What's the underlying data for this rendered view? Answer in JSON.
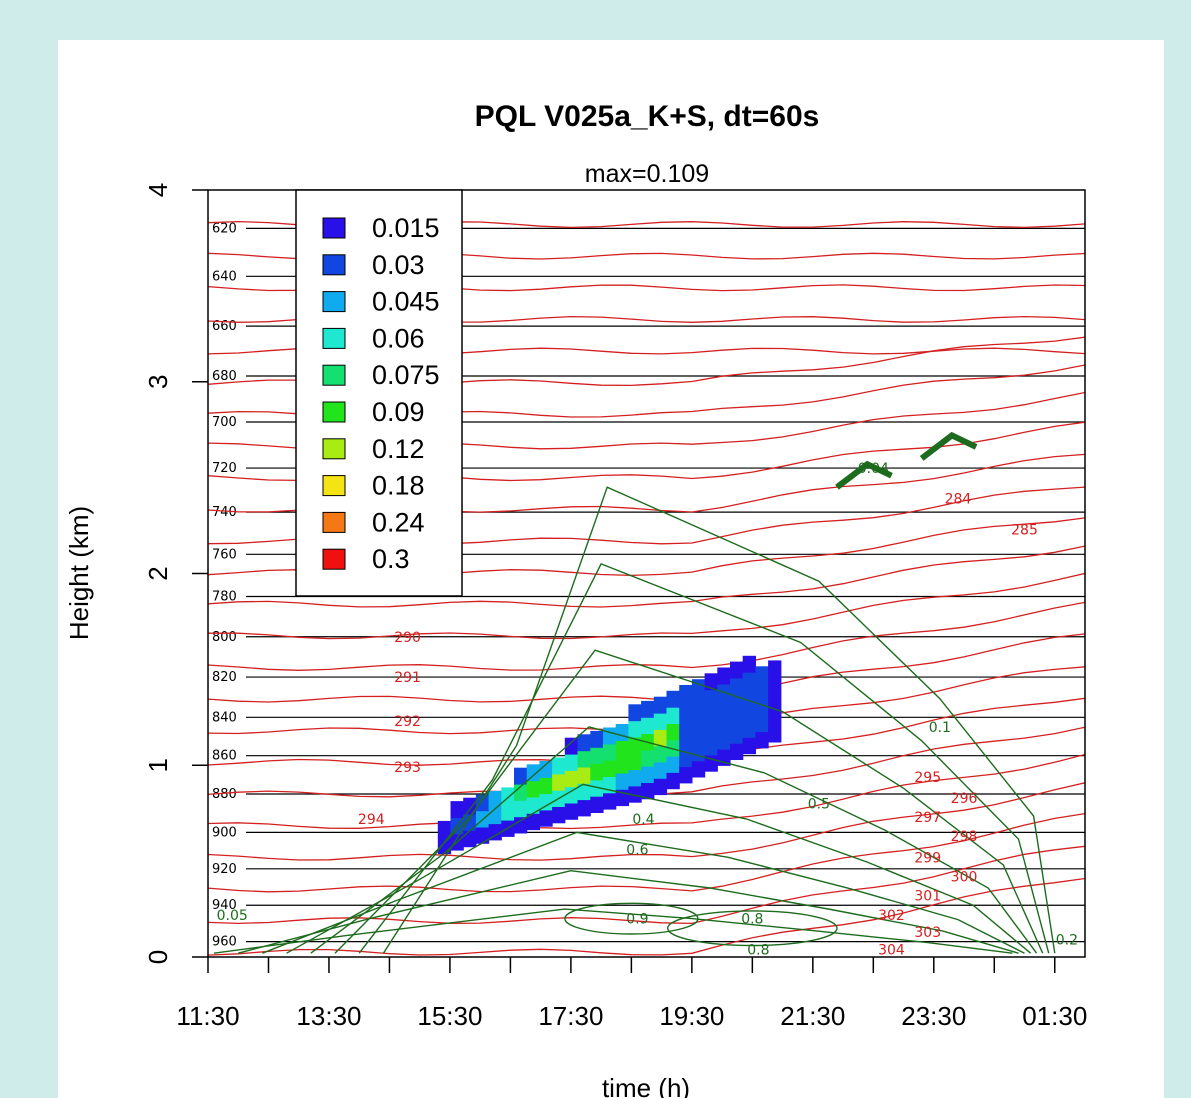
{
  "colors": {
    "page_bg": "#cfeceb",
    "card_bg": "#ffffff",
    "pressure_lines": "#000000",
    "theta_contours": "#d42020",
    "rh_contours": "#1d6b1d"
  },
  "chart_data": {
    "type": "heatmap",
    "title": "PQL V025a_K+S, dt=60s",
    "subtitle": "max=0.109",
    "xlabel": "time (h)",
    "ylabel": "Height (km)",
    "xlim": [
      11.5,
      26.0
    ],
    "ylim": [
      0,
      4
    ],
    "x_ticks": [
      "11:30",
      "13:30",
      "15:30",
      "17:30",
      "19:30",
      "21:30",
      "23:30",
      "01:30"
    ],
    "y_ticks": [
      0,
      1,
      2,
      3,
      4
    ],
    "grid": false,
    "legend": {
      "placement": "top-left",
      "entries": [
        {
          "label": "0.015",
          "color": "#2a10e8"
        },
        {
          "label": "0.03",
          "color": "#1246e0"
        },
        {
          "label": "0.045",
          "color": "#10aaee"
        },
        {
          "label": "0.06",
          "color": "#1ee8d0"
        },
        {
          "label": "0.075",
          "color": "#14e070"
        },
        {
          "label": "0.09",
          "color": "#22e41c"
        },
        {
          "label": "0.12",
          "color": "#a8ec14"
        },
        {
          "label": "0.18",
          "color": "#f4e414"
        },
        {
          "label": "0.24",
          "color": "#f47814"
        },
        {
          "label": "0.3",
          "color": "#f01010"
        }
      ]
    },
    "pressure_levels": [
      {
        "label": "620",
        "height_km": 3.8
      },
      {
        "label": "640",
        "height_km": 3.55
      },
      {
        "label": "660",
        "height_km": 3.29
      },
      {
        "label": "680",
        "height_km": 3.03
      },
      {
        "label": "700",
        "height_km": 2.79
      },
      {
        "label": "720",
        "height_km": 2.55
      },
      {
        "label": "740",
        "height_km": 2.32
      },
      {
        "label": "760",
        "height_km": 2.1
      },
      {
        "label": "780",
        "height_km": 1.88
      },
      {
        "label": "800",
        "height_km": 1.67
      },
      {
        "label": "820",
        "height_km": 1.46
      },
      {
        "label": "840",
        "height_km": 1.25
      },
      {
        "label": "860",
        "height_km": 1.05
      },
      {
        "label": "880",
        "height_km": 0.85
      },
      {
        "label": "900",
        "height_km": 0.65
      },
      {
        "label": "920",
        "height_km": 0.46
      },
      {
        "label": "940",
        "height_km": 0.27
      },
      {
        "label": "960",
        "height_km": 0.08
      }
    ],
    "theta_labels": [
      {
        "label": "290",
        "x": 14.8,
        "height_km": 1.67
      },
      {
        "label": "291",
        "x": 14.8,
        "height_km": 1.46
      },
      {
        "label": "292",
        "x": 14.8,
        "height_km": 1.23
      },
      {
        "label": "293",
        "x": 14.8,
        "height_km": 0.99
      },
      {
        "label": "294",
        "x": 14.2,
        "height_km": 0.72
      },
      {
        "label": "295",
        "x": 23.4,
        "height_km": 0.94
      },
      {
        "label": "296",
        "x": 24.0,
        "height_km": 0.83
      },
      {
        "label": "297",
        "x": 23.4,
        "height_km": 0.73
      },
      {
        "label": "298",
        "x": 24.0,
        "height_km": 0.63
      },
      {
        "label": "299",
        "x": 23.4,
        "height_km": 0.52
      },
      {
        "label": "300",
        "x": 24.0,
        "height_km": 0.42
      },
      {
        "label": "301",
        "x": 23.4,
        "height_km": 0.32
      },
      {
        "label": "302",
        "x": 22.8,
        "height_km": 0.22
      },
      {
        "label": "303",
        "x": 23.4,
        "height_km": 0.13
      },
      {
        "label": "304",
        "x": 22.8,
        "height_km": 0.04
      },
      {
        "label": "284",
        "x": 23.9,
        "height_km": 2.39
      },
      {
        "label": "285",
        "x": 25.0,
        "height_km": 2.23
      }
    ],
    "rh_labels": [
      {
        "label": "0.04",
        "x": 22.5,
        "height_km": 2.55
      },
      {
        "label": "0.1",
        "x": 23.6,
        "height_km": 1.2
      },
      {
        "label": "0.4",
        "x": 18.7,
        "height_km": 0.72
      },
      {
        "label": "0.5",
        "x": 21.6,
        "height_km": 0.8
      },
      {
        "label": "0.6",
        "x": 18.6,
        "height_km": 0.56
      },
      {
        "label": "0.9",
        "x": 18.6,
        "height_km": 0.2
      },
      {
        "label": "0.8",
        "x": 20.5,
        "height_km": 0.2
      },
      {
        "label": "0.8",
        "x": 20.6,
        "height_km": 0.04
      },
      {
        "label": "0.2",
        "x": 25.7,
        "height_km": 0.09
      },
      {
        "label": "0.05",
        "x": 11.9,
        "height_km": 0.22
      }
    ]
  }
}
